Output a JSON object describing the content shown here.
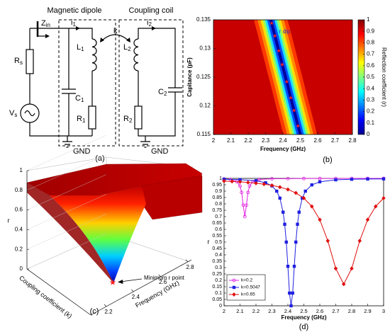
{
  "figure": {
    "a": {
      "label": "(a)",
      "blocks": [
        "Magnetic dipole",
        "Coupling coil"
      ],
      "components": {
        "zin": {
          "main": "Z",
          "sub": "in"
        },
        "i1": {
          "main": "i",
          "sub": "1"
        },
        "i2": {
          "main": "i",
          "sub": "2"
        },
        "k": "k",
        "L1": {
          "main": "L",
          "sub": "1"
        },
        "L2": {
          "main": "L",
          "sub": "2"
        },
        "C1": {
          "main": "C",
          "sub": "1"
        },
        "C2": {
          "main": "C",
          "sub": "2"
        },
        "R1": {
          "main": "R",
          "sub": "1"
        },
        "R2": {
          "main": "R",
          "sub": "2"
        },
        "Rs": {
          "main": "R",
          "sub": "s"
        },
        "Vs": {
          "main": "V",
          "sub": "s"
        }
      },
      "ground": [
        "GND",
        "GND"
      ]
    }
  },
  "chart_data": [
    {
      "type": "heatmap",
      "panel_label": "(b)",
      "xlabel": "Frequency (GHz)",
      "ylabel": "Capitance (pF)",
      "colorbar_label": "Reflection coefficient (r)",
      "annotation": "r dip",
      "colormap": "jet",
      "xlim": [
        2,
        2.8
      ],
      "xticks": [
        2,
        2.1,
        2.2,
        2.3,
        2.4,
        2.5,
        2.6,
        2.7,
        2.8
      ],
      "ylim": [
        0.115,
        0.135
      ],
      "yticks": [
        0.115,
        0.12,
        0.125,
        0.13,
        0.135
      ],
      "clim": [
        0,
        1
      ],
      "cticks": [
        0,
        0.1,
        0.2,
        0.3,
        0.4,
        0.5,
        0.6,
        0.7,
        0.8,
        0.9,
        1
      ],
      "dip": {
        "color": "#ff2020",
        "x": [
          2.335,
          2.354,
          2.376,
          2.396,
          2.422,
          2.445,
          2.464,
          2.487
        ],
        "y": [
          0.1344,
          0.1322,
          0.1296,
          0.1272,
          0.1242,
          0.1214,
          0.1192,
          0.1165
        ]
      }
    },
    {
      "type": "surface",
      "panel_label": "(c)",
      "xlabel": "Frequency (GHz)",
      "ylabel": "Coupling coefficient (k)",
      "zlabel": "r",
      "annotation": "Minimum r point",
      "xlim": [
        2.2,
        2.8
      ],
      "xticks": [
        2.2,
        2.4,
        2.6,
        2.8
      ],
      "zlim": [
        0,
        1
      ],
      "zticks": [
        0,
        0.2,
        0.4,
        0.6,
        0.8,
        1
      ]
    },
    {
      "type": "line",
      "panel_label": "(d)",
      "xlabel": "Frequency (GHz)",
      "ylabel": "r",
      "legend": "lower left",
      "xlim": [
        2,
        3
      ],
      "xticks": [
        2,
        2.1,
        2.2,
        2.3,
        2.4,
        2.5,
        2.6,
        2.7,
        2.8,
        2.9,
        3
      ],
      "ylim": [
        0,
        1
      ],
      "yticks": [
        0,
        0.05,
        0.1,
        0.15,
        0.2,
        0.25,
        0.3,
        0.35,
        0.4,
        0.45,
        0.5,
        0.55,
        0.6,
        0.65,
        0.7,
        0.75,
        0.8,
        0.85,
        0.9,
        0.95,
        1
      ],
      "series": [
        {
          "name": "k=0.2",
          "color": "#e020e0",
          "marker": "circle",
          "x": [
            2,
            2.04,
            2.08,
            2.1,
            2.11,
            2.12,
            2.13,
            2.14,
            2.15,
            2.16,
            2.18,
            2.22,
            2.3,
            2.4,
            2.5,
            2.6,
            2.7,
            2.8,
            2.9,
            3
          ],
          "values": [
            0.996,
            0.992,
            0.975,
            0.94,
            0.89,
            0.79,
            0.7,
            0.79,
            0.89,
            0.94,
            0.975,
            0.992,
            0.997,
            0.998,
            0.999,
            0.999,
            0.999,
            1,
            1,
            1
          ]
        },
        {
          "name": "k=0.5047",
          "color": "#2020e0",
          "marker": "square",
          "x": [
            2,
            2.1,
            2.2,
            2.26,
            2.3,
            2.33,
            2.35,
            2.37,
            2.38,
            2.39,
            2.4,
            2.41,
            2.42,
            2.43,
            2.44,
            2.45,
            2.46,
            2.47,
            2.49,
            2.51,
            2.55,
            2.6,
            2.7,
            2.8,
            2.9,
            3
          ],
          "values": [
            0.993,
            0.99,
            0.982,
            0.966,
            0.941,
            0.9,
            0.845,
            0.735,
            0.64,
            0.5,
            0.31,
            0.1,
            0,
            0.1,
            0.31,
            0.5,
            0.64,
            0.735,
            0.845,
            0.9,
            0.949,
            0.973,
            0.989,
            0.993,
            0.995,
            0.996
          ]
        },
        {
          "name": "k=0.65",
          "color": "#e01010",
          "marker": "diamond",
          "x": [
            2,
            2.05,
            2.1,
            2.15,
            2.2,
            2.25,
            2.3,
            2.35,
            2.4,
            2.45,
            2.5,
            2.55,
            2.6,
            2.65,
            2.7,
            2.75,
            2.8,
            2.85,
            2.9,
            2.95,
            3
          ],
          "values": [
            0.979,
            0.976,
            0.973,
            0.968,
            0.962,
            0.955,
            0.945,
            0.931,
            0.913,
            0.886,
            0.845,
            0.78,
            0.676,
            0.51,
            0.293,
            0.17,
            0.293,
            0.51,
            0.676,
            0.78,
            0.845
          ]
        }
      ]
    }
  ]
}
